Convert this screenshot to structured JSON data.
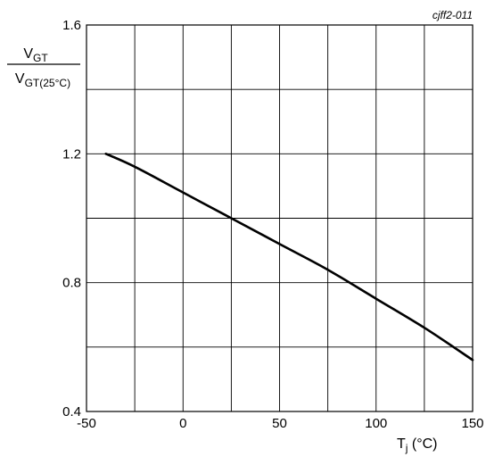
{
  "chart_data": {
    "type": "line",
    "figure_code": "cjff2-011",
    "ylabel": {
      "numerator_main": "V",
      "numerator_sub": "GT",
      "denominator_main": "V",
      "denominator_sub": "GT(25°C)"
    },
    "xlabel": {
      "main": "T",
      "sub": "j",
      "unit": " (°C)"
    },
    "xlim": [
      -50,
      150
    ],
    "ylim": [
      0.4,
      1.6
    ],
    "x_ticks": [
      -50,
      0,
      50,
      100,
      150
    ],
    "x_tick_labels": [
      "-50",
      "0",
      "50",
      "100",
      "150"
    ],
    "y_ticks": [
      0.4,
      0.8,
      1.2,
      1.6
    ],
    "y_tick_labels": [
      "0.4",
      "0.8",
      "1.2",
      "1.6"
    ],
    "x_grid_step": 25,
    "y_grid_step": 0.2,
    "grid": true,
    "series": [
      {
        "x": [
          -40,
          -25,
          0,
          25,
          50,
          75,
          100,
          125,
          150
        ],
        "y": [
          1.2,
          1.16,
          1.08,
          1.0,
          0.92,
          0.84,
          0.75,
          0.66,
          0.56
        ]
      }
    ]
  }
}
